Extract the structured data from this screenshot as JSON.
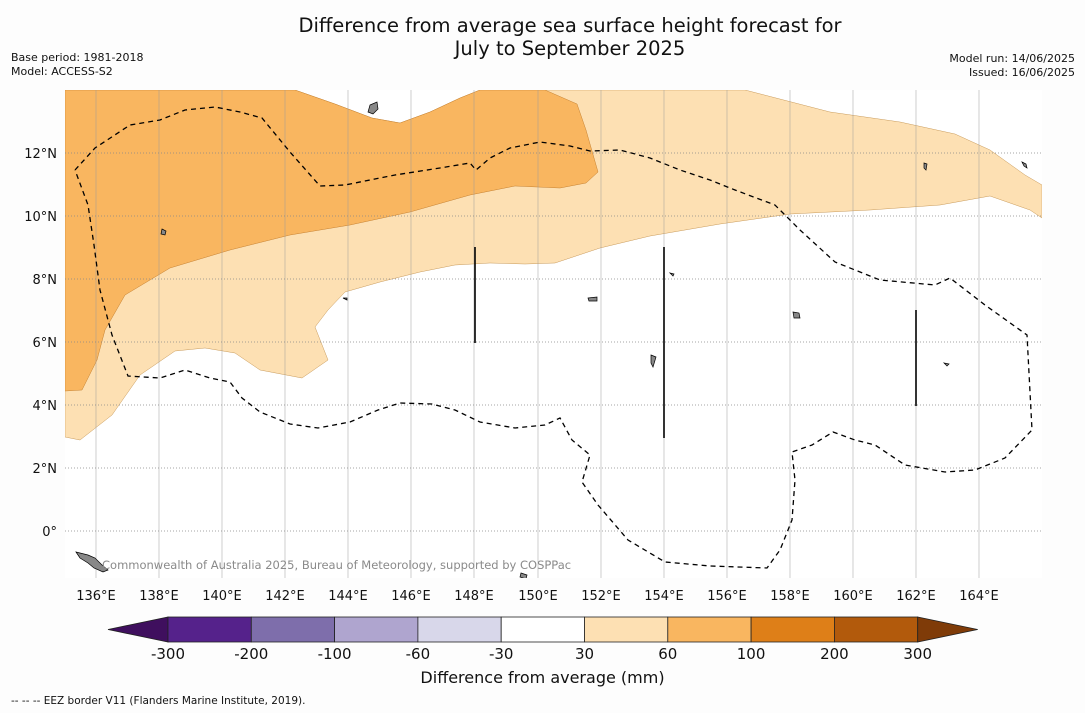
{
  "header": {
    "title_line1": "Difference from average sea surface height forecast for",
    "title_line2": "July to September 2025",
    "base_period": "Base period: 1981-2018",
    "model": "Model: ACCESS-S2",
    "model_run": "Model run: 14/06/2025",
    "issued": "Issued: 16/06/2025"
  },
  "map": {
    "lon_labels": [
      "136°E",
      "138°E",
      "140°E",
      "142°E",
      "144°E",
      "146°E",
      "148°E",
      "150°E",
      "152°E",
      "154°E",
      "156°E",
      "158°E",
      "160°E",
      "162°E",
      "164°E"
    ],
    "lat_labels": [
      "12°N",
      "10°N",
      "8°N",
      "6°N",
      "4°N",
      "2°N",
      "0°"
    ],
    "copyright": "Commonwealth of Australia 2025, Bureau of Meteorology, supported by COSPPac",
    "colors": {
      "light_orange": "#fde0b3",
      "mid_orange": "#f9b660",
      "land": "#888888"
    }
  },
  "colorbar": {
    "ticks": [
      "-300",
      "-200",
      "-100",
      "-60",
      "-30",
      "30",
      "60",
      "100",
      "200",
      "300"
    ],
    "colors": [
      "#3f0f5e",
      "#55228b",
      "#7e6eab",
      "#afa5cf",
      "#d8d7ea",
      "#ffffff",
      "#fde0b3",
      "#f9b660",
      "#de7f18",
      "#b25a0c",
      "#7f3b08"
    ],
    "label": "Difference from average (mm)"
  },
  "footer": {
    "eez_note": "--  --  -- EEZ border V11 (Flanders Marine Institute, 2019)."
  }
}
